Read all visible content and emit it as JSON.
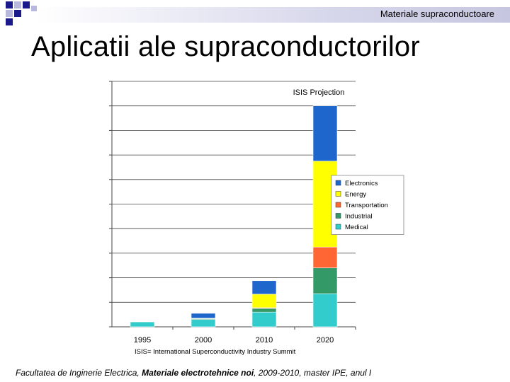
{
  "header": {
    "running_title": "Materiale supraconductoare"
  },
  "slide": {
    "title": "Aplicatii ale supraconductorilor"
  },
  "footer": {
    "part1": "Facultatea de Inginerie Electrica, ",
    "part2": "Materiale electrotehnice noi",
    "part3": ", 2009-2010, master IPE, anul I"
  },
  "chart_data": {
    "type": "bar",
    "stacked": true,
    "title": "ISIS Projection",
    "categories": [
      "1995",
      "2000",
      "2010",
      "2020"
    ],
    "series": [
      {
        "name": "Medical",
        "color": "#33cccc",
        "values": [
          2,
          3,
          6,
          13.5
        ]
      },
      {
        "name": "Industrial",
        "color": "#339966",
        "values": [
          0,
          0.3,
          1.5,
          10.5
        ]
      },
      {
        "name": "Transportation",
        "color": "#ff6633",
        "values": [
          0,
          0,
          0.3,
          8.5
        ]
      },
      {
        "name": "Energy",
        "color": "#ffff00",
        "values": [
          0,
          0.2,
          5.5,
          35
        ]
      },
      {
        "name": "Electronics",
        "color": "#1f66cc",
        "values": [
          0,
          2,
          5.5,
          22.5
        ]
      }
    ],
    "ylim": [
      0,
      100
    ],
    "grid": true,
    "legend_position": "right",
    "note": "ISIS= International Superconductivity Industry Summit"
  }
}
